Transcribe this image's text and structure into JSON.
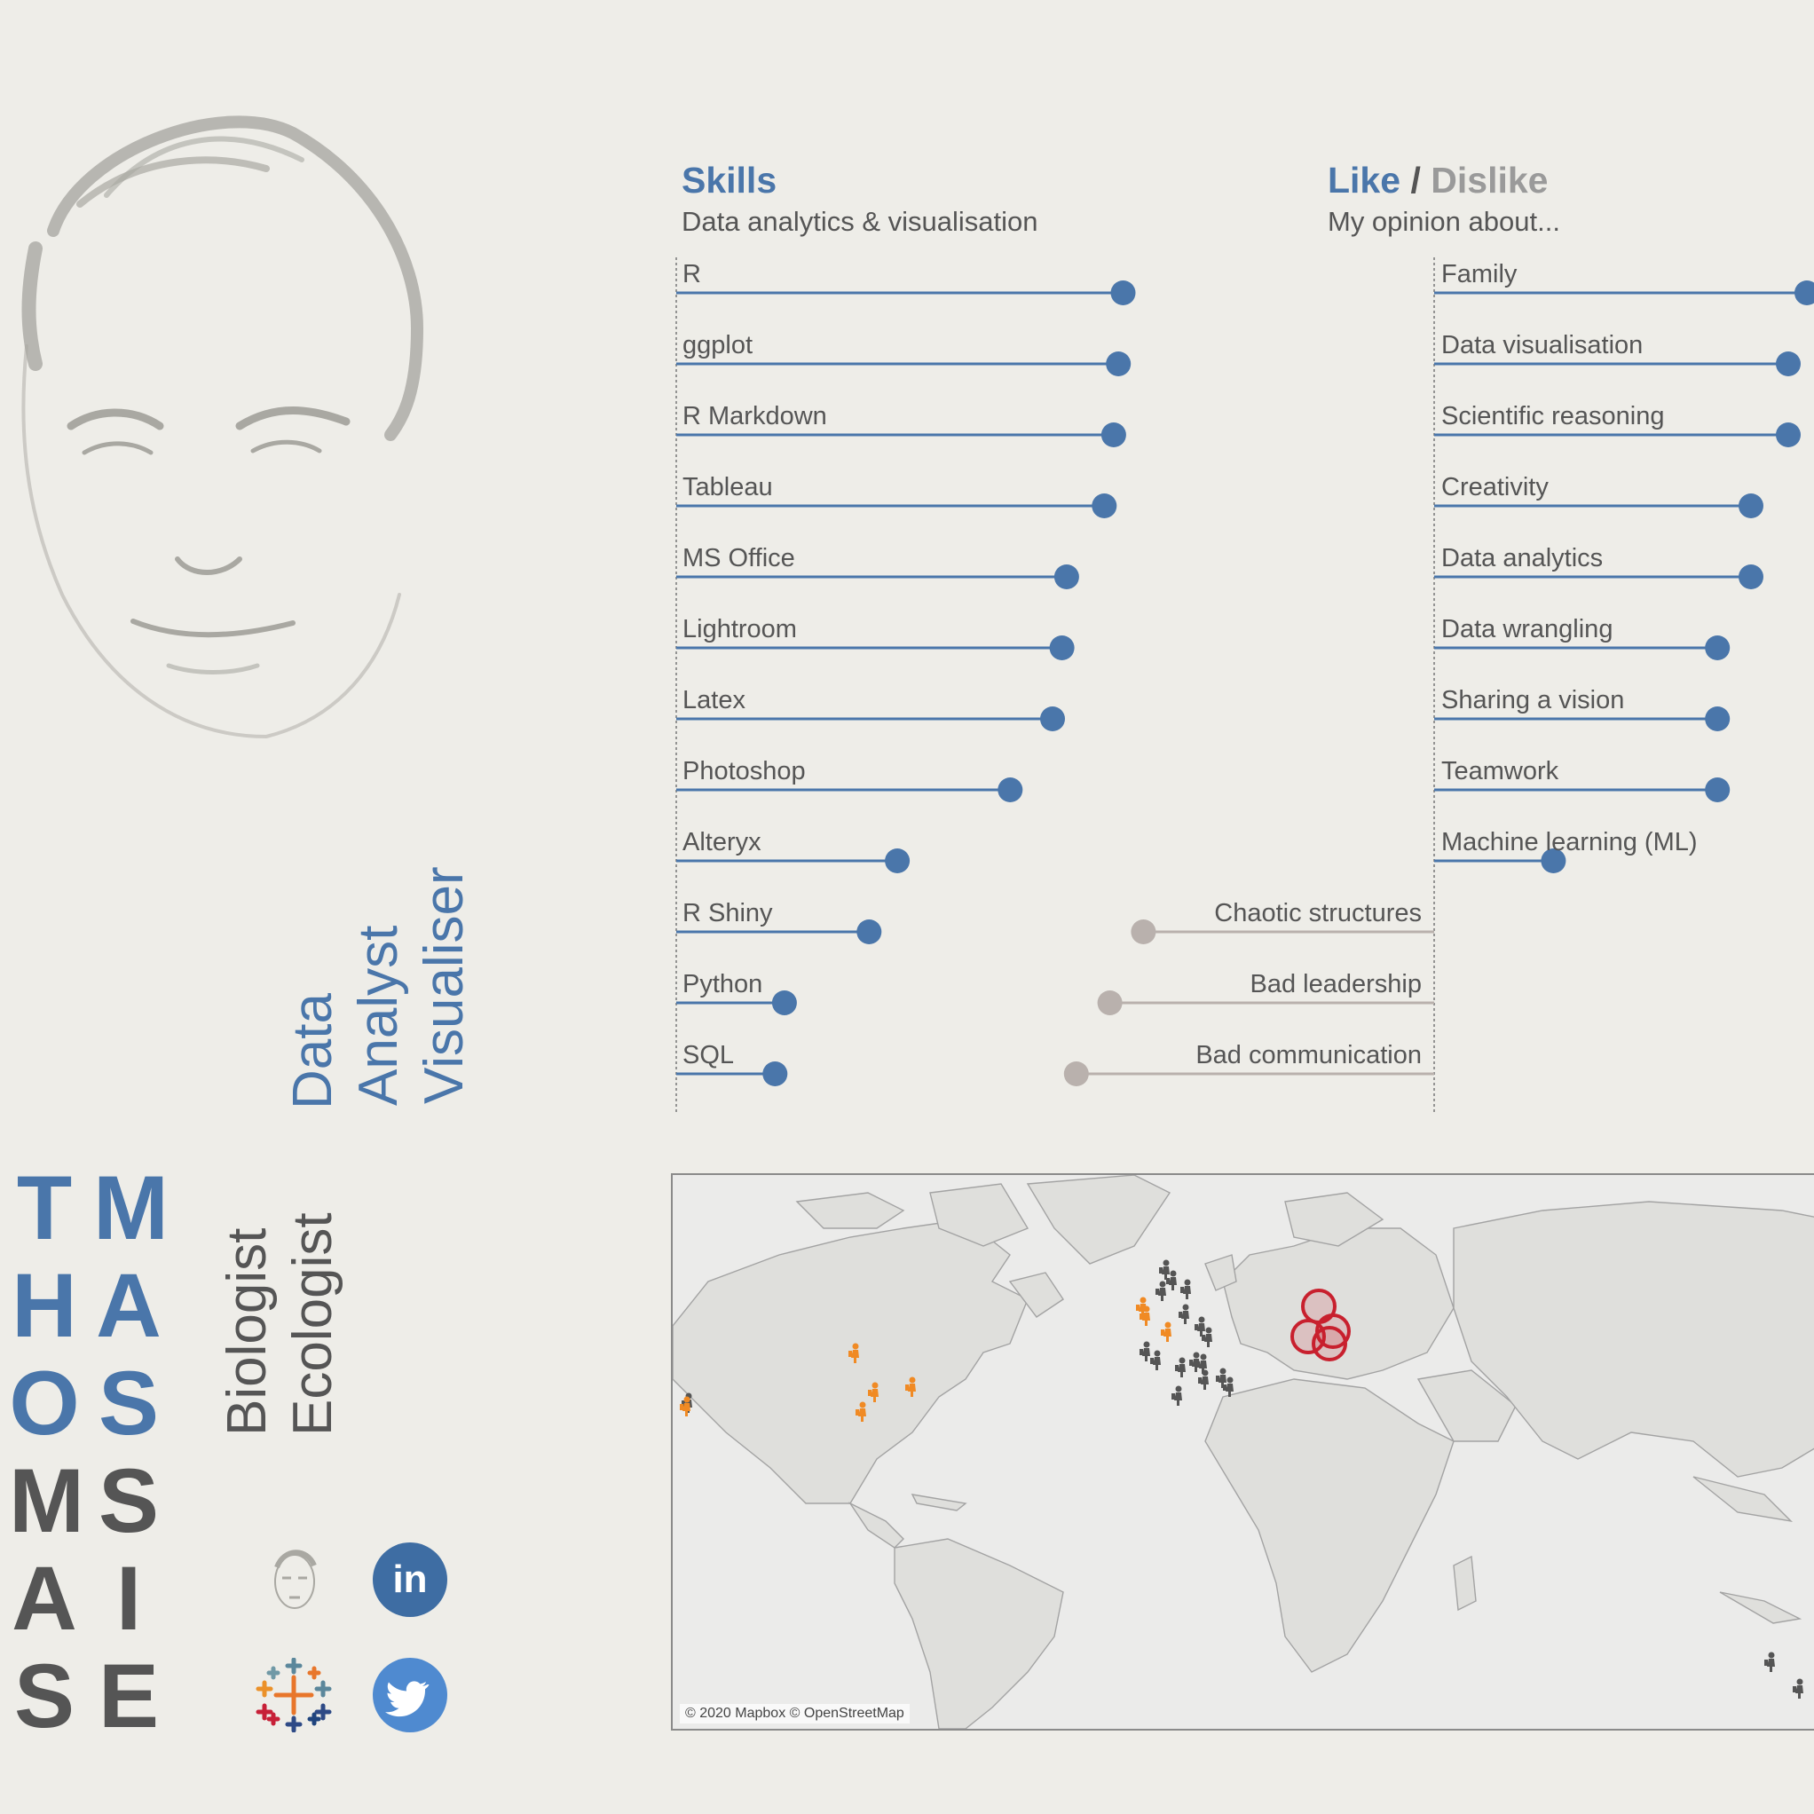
{
  "skills": {
    "title": "Skills",
    "subtitle": "Data analytics & visualisation",
    "items": [
      {
        "label": "R",
        "value": 0.95
      },
      {
        "label": "ggplot",
        "value": 0.94
      },
      {
        "label": "R Markdown",
        "value": 0.93
      },
      {
        "label": "Tableau",
        "value": 0.91
      },
      {
        "label": "MS Office",
        "value": 0.83
      },
      {
        "label": "Lightroom",
        "value": 0.82
      },
      {
        "label": "Latex",
        "value": 0.8
      },
      {
        "label": "Photoshop",
        "value": 0.71
      },
      {
        "label": "Alteryx",
        "value": 0.47
      },
      {
        "label": "R Shiny",
        "value": 0.41
      },
      {
        "label": "Python",
        "value": 0.23
      },
      {
        "label": "SQL",
        "value": 0.21
      }
    ],
    "color": "#4a76aa"
  },
  "opinions": {
    "title_like": "Like",
    "separator": "/",
    "title_dislike": "Dislike",
    "subtitle": "My opinion about...",
    "likes": [
      {
        "label": "Family",
        "value": 1.0
      },
      {
        "label": "Data visualisation",
        "value": 0.95
      },
      {
        "label": "Scientific reasoning",
        "value": 0.95
      },
      {
        "label": "Creativity",
        "value": 0.85
      },
      {
        "label": "Data analytics",
        "value": 0.85
      },
      {
        "label": "Data wrangling",
        "value": 0.76
      },
      {
        "label": "Sharing a vision",
        "value": 0.76
      },
      {
        "label": "Teamwork",
        "value": 0.76
      },
      {
        "label": "Machine learning (ML)",
        "value": 0.32
      }
    ],
    "dislikes": [
      {
        "label": "Chaotic structures",
        "value": -0.78
      },
      {
        "label": "Bad leadership",
        "value": -0.87
      },
      {
        "label": "Bad communication",
        "value": -0.96
      }
    ],
    "like_color": "#4a76aa",
    "dislike_color": "#b9b1ad"
  },
  "roles": {
    "data": "Data",
    "analyst": "Analyst",
    "visualiser": "Visualiser",
    "biologist": "Biologist",
    "ecologist": "Ecologist"
  },
  "name": {
    "first": [
      "T",
      "H",
      "O",
      "M",
      "A",
      "S"
    ],
    "last": [
      "M",
      "A",
      "S",
      "S",
      "I",
      "E"
    ]
  },
  "social": {
    "linkedin_text": "in",
    "icons": [
      "portrait-icon",
      "linkedin-icon",
      "tableau-icon",
      "twitter-icon"
    ]
  },
  "map": {
    "attribution": "© 2020 Mapbox © OpenStreetMap"
  },
  "colors": {
    "background": "#eeede8",
    "accent": "#4a76aa",
    "dark": "#555555",
    "orange": "#f08a24"
  }
}
